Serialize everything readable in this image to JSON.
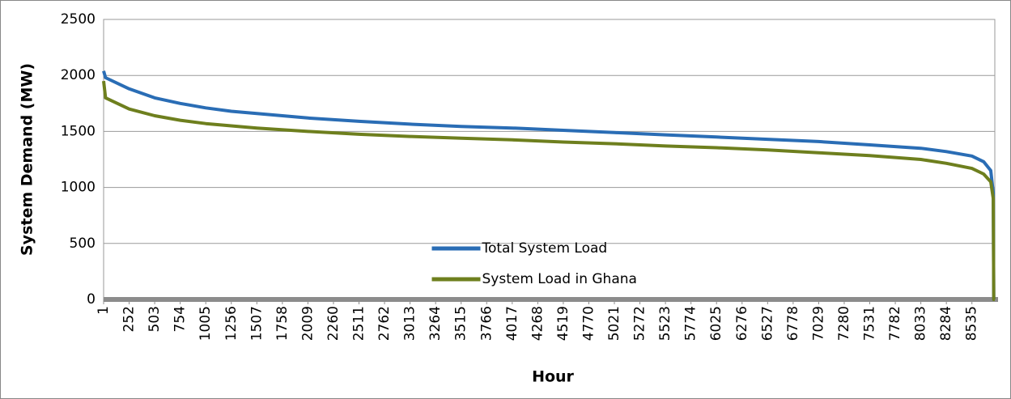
{
  "chart_data": {
    "type": "line",
    "x_label": "Hour",
    "y_label": "System Demand (MW)",
    "x": [
      1,
      20,
      252,
      503,
      754,
      1005,
      1256,
      1507,
      2009,
      2511,
      3013,
      3515,
      4017,
      4519,
      5021,
      5523,
      6025,
      6527,
      7029,
      7531,
      8033,
      8284,
      8535,
      8650,
      8720,
      8745,
      8750,
      8760
    ],
    "series": [
      {
        "name": "Total System Load",
        "color": "#2a6db5",
        "values": [
          2040,
          1980,
          1880,
          1800,
          1750,
          1710,
          1680,
          1660,
          1620,
          1590,
          1565,
          1545,
          1530,
          1510,
          1490,
          1470,
          1450,
          1430,
          1410,
          1380,
          1350,
          1320,
          1280,
          1230,
          1150,
          950,
          0,
          0
        ]
      },
      {
        "name": "System Load in Ghana",
        "color": "#6e7f1e",
        "values": [
          1950,
          1800,
          1700,
          1640,
          1600,
          1570,
          1550,
          1530,
          1500,
          1475,
          1455,
          1440,
          1425,
          1405,
          1390,
          1370,
          1355,
          1335,
          1310,
          1285,
          1250,
          1215,
          1170,
          1120,
          1050,
          900,
          0,
          0
        ]
      }
    ],
    "xlim": [
      1,
      8760
    ],
    "xticks": [
      1,
      252,
      503,
      754,
      1005,
      1256,
      1507,
      1758,
      2009,
      2260,
      2511,
      2762,
      3013,
      3264,
      3515,
      3766,
      4017,
      4268,
      4519,
      4770,
      5021,
      5272,
      5523,
      5774,
      6025,
      6276,
      6527,
      6778,
      7029,
      7280,
      7531,
      7782,
      8033,
      8284,
      8535
    ],
    "ylim": [
      0,
      2500
    ],
    "yticks": [
      0,
      500,
      1000,
      1500,
      2000,
      2500
    ],
    "grid": true,
    "legend": "center"
  }
}
